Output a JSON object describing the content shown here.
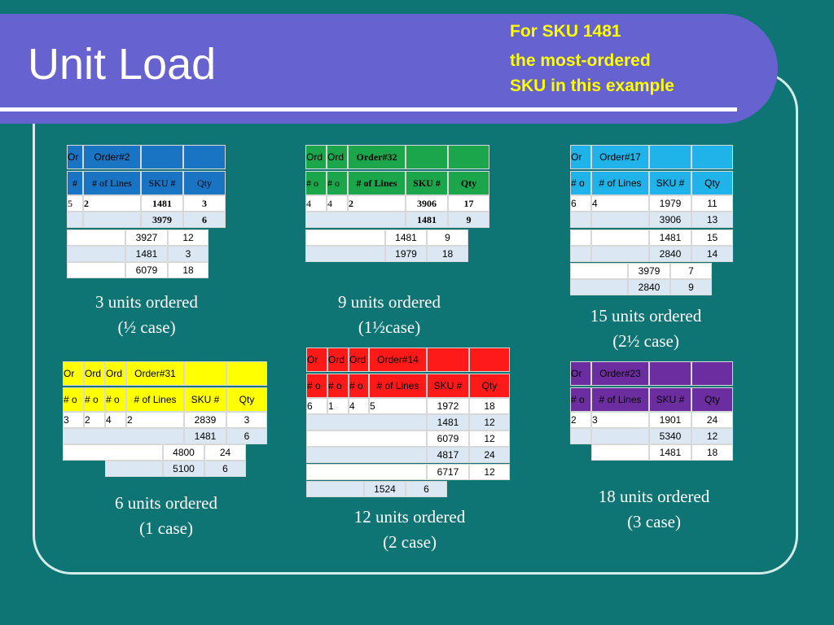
{
  "slide": {
    "title": "Unit Load",
    "note_line1": "For SKU 1481",
    "note_line2": "the most-ordered",
    "note_line3": "SKU in this example"
  },
  "colors": {
    "background": "#0f7474",
    "header": "#6662cf",
    "note": "#ffff00",
    "order2": "#1a74c4",
    "order32": "#1ba64b",
    "order17": "#1fb3ea",
    "order31": "#ffff00",
    "order14": "#ff1a1a",
    "order23": "#6b2d9f",
    "cell_blue": "#dbe8f4",
    "cell_white": "#ffffff"
  },
  "tables": {
    "o2": {
      "truncated": [
        "Or"
      ],
      "order": "Order#2",
      "lines_header": "# of Lines",
      "sku_header": "SKU #",
      "qty_header": "Qty",
      "col_a": "#",
      "order_no": "5",
      "lines": "2",
      "rows": [
        {
          "sku": "1481",
          "qty": "3"
        },
        {
          "sku": "3979",
          "qty": "6"
        },
        {
          "sku": "3927",
          "qty": "12"
        },
        {
          "sku": "1481",
          "qty": "3"
        },
        {
          "sku": "6079",
          "qty": "18"
        }
      ],
      "caption1": "3 units ordered",
      "caption2": "(½ case)"
    },
    "o32": {
      "truncated": [
        "Ord",
        "Ord"
      ],
      "order": "Order#32",
      "lines_header": "# of Lines",
      "sku_header": "SKU #",
      "qty_header": "Qty",
      "col_a": "# o",
      "col_b": "# o",
      "v1": "4",
      "v2": "4",
      "lines": "2",
      "rows": [
        {
          "sku": "3906",
          "qty": "17"
        },
        {
          "sku": "1481",
          "qty": "9"
        },
        {
          "sku": "1481",
          "qty": "9"
        },
        {
          "sku": "1979",
          "qty": "18"
        }
      ],
      "caption1": "9 units ordered",
      "caption2": "(1½case)"
    },
    "o17": {
      "truncated": [
        "Or"
      ],
      "order": "Order#17",
      "lines_header": "# of Lines",
      "sku_header": "SKU #",
      "qty_header": "Qty",
      "col_a": "# o",
      "order_no": "6",
      "lines": "4",
      "rows": [
        {
          "sku": "1979",
          "qty": "11"
        },
        {
          "sku": "3906",
          "qty": "13"
        },
        {
          "sku": "1481",
          "qty": "15"
        },
        {
          "sku": "2840",
          "qty": "14"
        },
        {
          "sku": "3979",
          "qty": "7"
        },
        {
          "sku": "2840",
          "qty": "9"
        }
      ],
      "caption1": "15 units ordered",
      "caption2": "(2½ case)"
    },
    "o31": {
      "truncated": [
        "Or",
        "Ord",
        "Ord"
      ],
      "order": "Order#31",
      "lines_header": "# of Lines",
      "sku_header": "SKU #",
      "qty_header": "Qty",
      "col_a": "# o",
      "col_b": "# o",
      "col_c": "# o",
      "v1": "3",
      "v2": "2",
      "v3": "4",
      "lines": "2",
      "rows": [
        {
          "sku": "2839",
          "qty": "3"
        },
        {
          "sku": "1481",
          "qty": "6"
        },
        {
          "sku": "4800",
          "qty": "24"
        },
        {
          "sku": "5100",
          "qty": "6"
        }
      ],
      "caption1": "6 units ordered",
      "caption2": "(1 case)"
    },
    "o14": {
      "truncated": [
        "Or",
        "Ord",
        "Ord"
      ],
      "order": "Order#14",
      "lines_header": "# of Lines",
      "sku_header": "SKU #",
      "qty_header": "Qty",
      "col_a": "# o",
      "col_b": "# o",
      "col_c": "# o",
      "v1": "6",
      "v2": "1",
      "v3": "4",
      "lines": "5",
      "rows": [
        {
          "sku": "1972",
          "qty": "18"
        },
        {
          "sku": "1481",
          "qty": "12"
        },
        {
          "sku": "6079",
          "qty": "12"
        },
        {
          "sku": "4817",
          "qty": "24"
        },
        {
          "sku": "6717",
          "qty": "12"
        },
        {
          "sku": "1524",
          "qty": "6"
        }
      ],
      "caption1": "12 units ordered",
      "caption2": "(2 case)"
    },
    "o23": {
      "truncated": [
        "Or"
      ],
      "order": "Order#23",
      "lines_header": "# of Lines",
      "sku_header": "SKU #",
      "qty_header": "Qty",
      "col_a": "# o",
      "order_no": "2",
      "lines": "3",
      "rows": [
        {
          "sku": "1901",
          "qty": "24"
        },
        {
          "sku": "5340",
          "qty": "12"
        },
        {
          "sku": "1481",
          "qty": "18"
        }
      ],
      "caption1": "18 units ordered",
      "caption2": "(3 case)"
    }
  }
}
